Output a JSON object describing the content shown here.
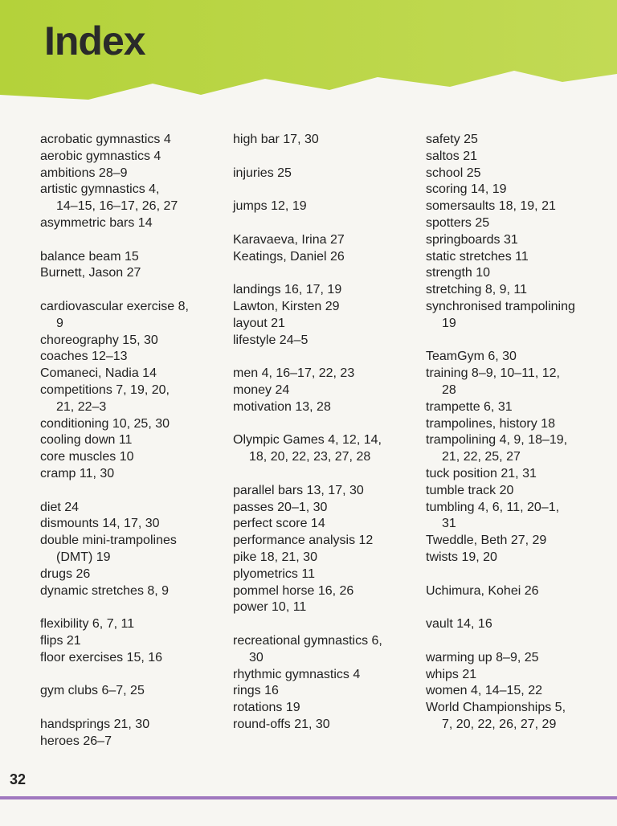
{
  "title": "Index",
  "page_number": "32",
  "columns": [
    [
      [
        [
          "acrobatic gymnastics 4"
        ],
        [
          "aerobic gymnastics 4"
        ],
        [
          "ambitions 28–9"
        ],
        [
          "artistic gymnastics 4,",
          "14–15, 16–17, 26, 27"
        ],
        [
          "asymmetric bars 14"
        ]
      ],
      [
        [
          "balance beam 15"
        ],
        [
          "Burnett, Jason 27"
        ]
      ],
      [
        [
          "cardiovascular exercise 8,",
          "9"
        ],
        [
          "choreography 15, 30"
        ],
        [
          "coaches 12–13"
        ],
        [
          "Comaneci, Nadia 14"
        ],
        [
          "competitions 7, 19, 20,",
          "21, 22–3"
        ],
        [
          "conditioning 10, 25, 30"
        ],
        [
          "cooling down 11"
        ],
        [
          "core muscles 10"
        ],
        [
          "cramp 11, 30"
        ]
      ],
      [
        [
          "diet 24"
        ],
        [
          "dismounts 14, 17, 30"
        ],
        [
          "double mini-trampolines",
          "(DMT) 19"
        ],
        [
          "drugs 26"
        ],
        [
          "dynamic stretches 8, 9"
        ]
      ],
      [
        [
          "flexibility 6, 7, 11"
        ],
        [
          "flips 21"
        ],
        [
          "floor exercises 15, 16"
        ]
      ],
      [
        [
          "gym clubs 6–7, 25"
        ]
      ],
      [
        [
          "handsprings 21, 30"
        ],
        [
          "heroes 26–7"
        ]
      ]
    ],
    [
      [
        [
          "high bar 17, 30"
        ]
      ],
      [
        [
          "injuries 25"
        ]
      ],
      [
        [
          "jumps 12, 19"
        ]
      ],
      [
        [
          "Karavaeva, Irina 27"
        ],
        [
          "Keatings, Daniel 26"
        ]
      ],
      [
        [
          "landings 16, 17, 19"
        ],
        [
          "Lawton, Kirsten 29"
        ],
        [
          "layout 21"
        ],
        [
          "lifestyle 24–5"
        ]
      ],
      [
        [
          "men 4, 16–17, 22, 23"
        ],
        [
          "money 24"
        ],
        [
          "motivation 13, 28"
        ]
      ],
      [
        [
          "Olympic Games 4, 12, 14,",
          "18, 20, 22, 23, 27, 28"
        ]
      ],
      [
        [
          "parallel bars 13, 17, 30"
        ],
        [
          "passes 20–1, 30"
        ],
        [
          "perfect score 14"
        ],
        [
          "performance analysis 12"
        ],
        [
          "pike 18, 21, 30"
        ],
        [
          "plyometrics 11"
        ],
        [
          "pommel horse 16, 26"
        ],
        [
          "power 10, 11"
        ]
      ],
      [
        [
          "recreational gymnastics 6,",
          "30"
        ],
        [
          "rhythmic gymnastics 4"
        ],
        [
          "rings 16"
        ],
        [
          "rotations 19"
        ],
        [
          "round-offs 21, 30"
        ]
      ]
    ],
    [
      [
        [
          "safety 25"
        ],
        [
          "saltos 21"
        ],
        [
          "school 25"
        ],
        [
          "scoring 14, 19"
        ],
        [
          "somersaults 18, 19, 21"
        ],
        [
          "spotters 25"
        ],
        [
          "springboards 31"
        ],
        [
          "static stretches 11"
        ],
        [
          "strength 10"
        ],
        [
          "stretching 8, 9, 11"
        ],
        [
          "synchronised trampolining",
          "19"
        ]
      ],
      [
        [
          "TeamGym 6, 30"
        ],
        [
          "training 8–9, 10–11, 12,",
          "28"
        ],
        [
          "trampette 6, 31"
        ],
        [
          "trampolines, history 18"
        ],
        [
          "trampolining 4, 9, 18–19,",
          "21, 22, 25, 27"
        ],
        [
          "tuck position 21, 31"
        ],
        [
          "tumble track 20"
        ],
        [
          "tumbling 4, 6, 11, 20–1,",
          "31"
        ],
        [
          "Tweddle, Beth 27, 29"
        ],
        [
          "twists 19, 20"
        ]
      ],
      [
        [
          "Uchimura, Kohei 26"
        ]
      ],
      [
        [
          "vault 14, 16"
        ]
      ],
      [
        [
          "warming up 8–9, 25"
        ],
        [
          "whips 21"
        ],
        [
          "women 4, 14–15, 22"
        ],
        [
          "World Championships 5,",
          "7, 20, 22, 26, 27, 29"
        ]
      ]
    ]
  ]
}
